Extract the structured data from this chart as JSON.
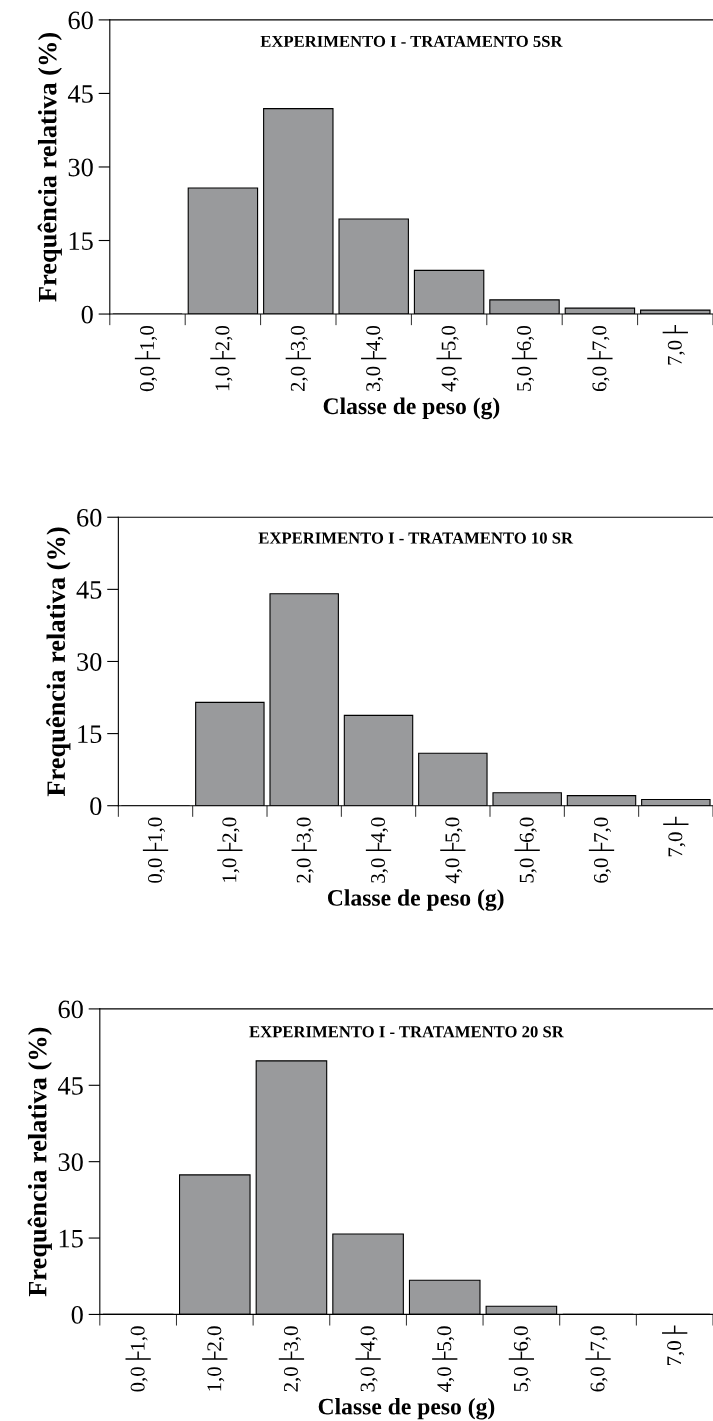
{
  "chart_data": [
    {
      "type": "bar",
      "title": "EXPERIMENTO I - TRATAMENTO 5SR",
      "xlabel": "Classe de peso (g)",
      "ylabel": "Frequência relativa (%)",
      "categories": [
        "0,0├1,0",
        "1,0├2,0",
        "2,0├3,0",
        "3,0├4,0",
        "4,0├5,0",
        "5,0├6,0",
        "6,0├7,0",
        "7,0├"
      ],
      "values": [
        0,
        25.7,
        41.9,
        19.4,
        8.9,
        2.9,
        1.2,
        0.8
      ],
      "color": "#999a9c",
      "ylim": [
        0,
        60
      ],
      "yticks": [
        0,
        15,
        30,
        45,
        60
      ],
      "grid": false
    },
    {
      "type": "bar",
      "title": "EXPERIMENTO I - TRATAMENTO 10 SR",
      "xlabel": "Classe de peso (g)",
      "ylabel": "Frequência relativa (%)",
      "categories": [
        "0,0├1,0",
        "1,0├2,0",
        "2,0├3,0",
        "3,0├4,0",
        "4,0├5,0",
        "5,0├6,0",
        "6,0├7,0",
        "7,0├"
      ],
      "values": [
        0,
        21.5,
        44.1,
        18.8,
        10.9,
        2.7,
        2.1,
        1.3
      ],
      "color": "#999a9c",
      "ylim": [
        0,
        60
      ],
      "yticks": [
        0,
        15,
        30,
        45,
        60
      ],
      "grid": false
    },
    {
      "type": "bar",
      "title": "EXPERIMENTO I - TRATAMENTO 20 SR",
      "xlabel": "Classe de peso (g)",
      "ylabel": "Frequência relativa (%)",
      "categories": [
        "0,0├1,0",
        "1,0├2,0",
        "2,0├3,0",
        "3,0├4,0",
        "4,0├5,0",
        "5,0├6,0",
        "6,0├7,0",
        "7,0├"
      ],
      "values": [
        0,
        27.4,
        49.8,
        15.8,
        6.7,
        1.6,
        0,
        0
      ],
      "color": "#999a9c",
      "ylim": [
        0,
        60
      ],
      "yticks": [
        0,
        15,
        30,
        45,
        60
      ],
      "grid": false
    }
  ]
}
